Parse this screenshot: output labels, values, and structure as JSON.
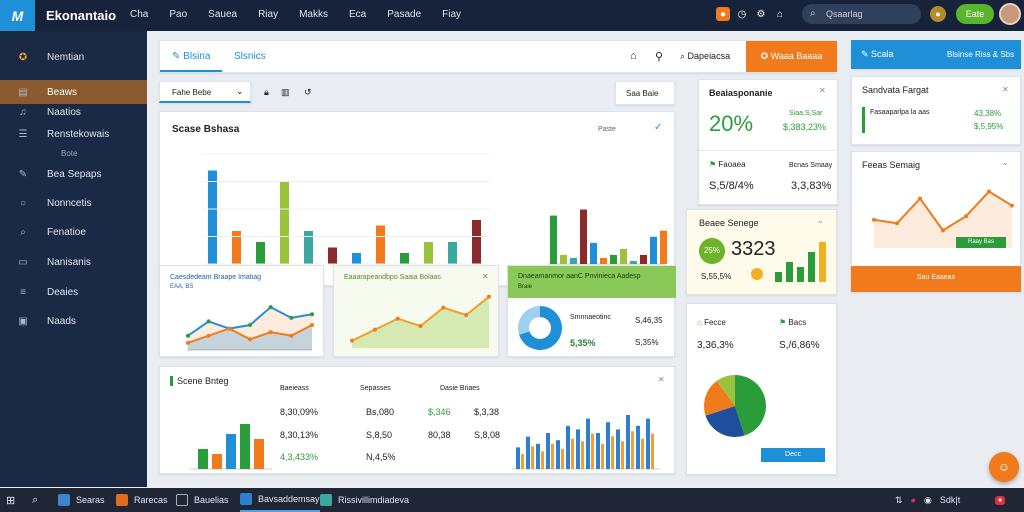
{
  "app": {
    "title": "Ekonantaio",
    "logo": "M"
  },
  "topnav": [
    "Cha",
    "Pao",
    "Sauea",
    "Riay",
    "Makks",
    "Eca",
    "Pasade",
    "Fiay"
  ],
  "topbar": {
    "search_placeholder": "Qsaarlag",
    "user_label": "Eate"
  },
  "sidebar": {
    "brand": "Nemtian",
    "items": [
      {
        "label": "Beaws",
        "icon": "bar-chart-icon"
      },
      {
        "label": "Naatios",
        "icon": "bell-icon"
      },
      {
        "label": "Renstekowais",
        "icon": "list-icon"
      },
      {
        "label": "Bote",
        "icon": ""
      },
      {
        "label": "Bea Sepaps",
        "icon": "pencil-icon"
      },
      {
        "label": "Nonncetis",
        "icon": "circle-icon"
      },
      {
        "label": "Fenatioe",
        "icon": "search-icon"
      },
      {
        "label": "Nanisanis",
        "icon": "doc-icon"
      },
      {
        "label": "Deaies",
        "icon": "menu-icon"
      },
      {
        "label": "Naads",
        "icon": "file-icon"
      }
    ]
  },
  "toolbar": {
    "tab_active": "Blsina",
    "tab_2": "Slsnics",
    "export_label": "Dapeiacsa",
    "primary_btn": "Waaa Baaaa",
    "dropdown": "Fahe Bebe",
    "range_btn": "Saa Baie"
  },
  "main_chart": {
    "title": "Scase Bshasa",
    "legend": "Paste"
  },
  "card_a": {
    "title": "Caesdedeam Braape Imatiag",
    "sub": "EAA, BS"
  },
  "card_b": {
    "title": "Eaaarapeandbpo Saaia Bolaas"
  },
  "card_c": {
    "title": "Dnaeamanmor aanC Pnvinieca Aadesp",
    "sub": "Braie",
    "label": "Smnnaeotinc",
    "v1": "5,35%",
    "v2": "S,46,35",
    "v3": "S,35%"
  },
  "table_card": {
    "title": "Scene Bnteg",
    "headers": [
      "Baeieass",
      "Sepasses",
      "Dasie Briaes"
    ],
    "rows": [
      [
        "8,30,09%",
        "Bs,080",
        "$,346",
        "$,3,38"
      ],
      [
        "8,30,13%",
        "S,8,50",
        "80,38",
        "S,8,08"
      ],
      [
        "4,3,433%",
        "N,4,5%",
        "",
        ""
      ]
    ]
  },
  "stats": {
    "s1_title": "Beaiasponanie",
    "s1_value": "20%",
    "s1_delta": "$,383,23%",
    "s1_delta_label": "Siaa,S,Sar",
    "s2_title": "Faoaea",
    "s2_value": "S,5/8/4%",
    "s2_label": "Bcnas Smaay",
    "s2_value2": "3,3,83%",
    "s3_title": "Beaee Senege",
    "s3_value": "3323",
    "s3_badge": "25%",
    "s3_sub": "S,55,5%",
    "s4_title": "Fecce",
    "s4_value": "3,36,3%",
    "s5_title": "Bacs",
    "s5_value": "S,/6,86%",
    "pie_btn": "Decc"
  },
  "right_panel": {
    "header_title": "Scala",
    "header_right": "Blsinse Riss & Sbs",
    "card1_title": "Sandvata Fargat",
    "card1_item": "Fasaaparlpa la aas",
    "card1_v1": "43,38%",
    "card1_v2": "$,5,95%",
    "card2_title": "Feeas Semaig",
    "card2_btn": "Raay Bas",
    "card3_label": "Sau Eaaeas"
  },
  "taskbar": {
    "items": [
      "Searas",
      "Rarecas",
      "Bauelias",
      "Bavsaddemsay",
      "Rissivillimdiadeva"
    ],
    "tray": "Sdk|t"
  },
  "colors": {
    "navy": "#16233b",
    "sidebar": "#1b2a44",
    "accent_orange": "#f07a1c",
    "accent_blue": "#1f8fd8",
    "green": "#2a9d3a"
  },
  "chart_data": [
    {
      "type": "bar",
      "title": "Scase Bshasa",
      "xlabel": "",
      "ylabel": "",
      "series": [
        {
          "values": [
            85,
            30,
            20,
            75,
            30,
            15,
            10,
            35,
            10,
            20,
            20,
            40
          ]
        },
        {
          "values": [
            80,
            15,
            10,
            90,
            35,
            10,
            15,
            25,
            5,
            15,
            45,
            55
          ]
        }
      ],
      "ylim": [
        0,
        100
      ]
    },
    {
      "type": "line",
      "series": [
        {
          "values": [
            20,
            40,
            30,
            35,
            60,
            45,
            50
          ]
        },
        {
          "values": [
            10,
            20,
            30,
            15,
            25,
            20,
            35
          ]
        }
      ]
    },
    {
      "type": "area",
      "series": [
        {
          "values": [
            10,
            25,
            40,
            30,
            55,
            45,
            70
          ]
        }
      ]
    },
    {
      "type": "pie",
      "values": [
        70,
        30
      ]
    },
    {
      "type": "bar",
      "series": [
        {
          "values": [
            20,
            15,
            35,
            45,
            30
          ]
        }
      ],
      "ylim": [
        0,
        60
      ]
    },
    {
      "type": "bar",
      "series": [
        {
          "values": [
            30,
            45,
            35,
            50,
            40,
            60,
            55,
            70,
            50,
            65,
            55,
            75,
            60,
            70
          ]
        }
      ]
    },
    {
      "type": "pie",
      "values": [
        45,
        25,
        20,
        10
      ]
    },
    {
      "type": "line",
      "series": [
        {
          "values": [
            40,
            35,
            70,
            25,
            45,
            80,
            60
          ]
        }
      ]
    },
    {
      "type": "bar",
      "series": [
        {
          "values": [
            20,
            40,
            30,
            60,
            80
          ]
        }
      ]
    }
  ]
}
